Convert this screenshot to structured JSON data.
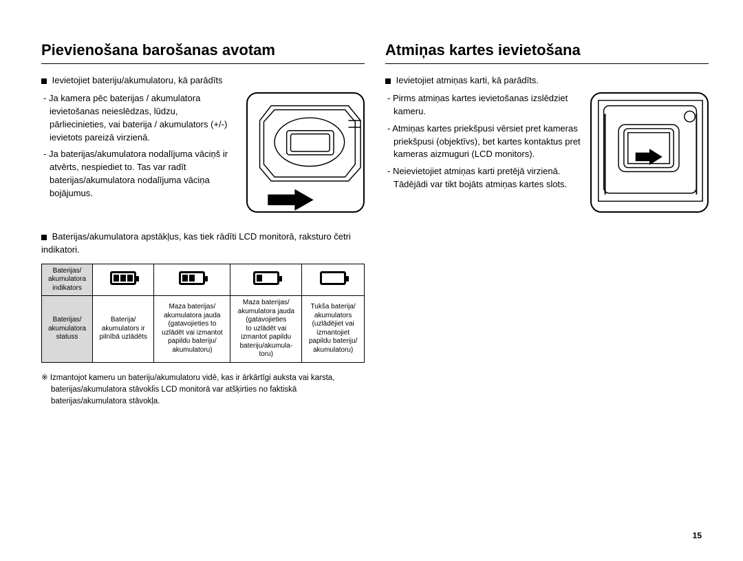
{
  "page_number": "15",
  "left": {
    "heading": "Pievienošana barošanas avotam",
    "intro": "Ievietojiet bateriju/akumulatoru, kā parādīts",
    "bullets": [
      "- Ja kamera pēc baterijas / akumulatora ievietošanas neieslēdzas, lūdzu, pārliecinieties, vai baterija / akumulators (+/-) ievietots pareizā virzienā.",
      "- Ja baterijas/akumulatora nodalījuma vāciņš ir atvērts, nespiediet to. Tas var radīt baterijas/akumulatora nodalījuma vāciņa bojājumus."
    ],
    "section2_intro": "Baterijas/akumulatora apstākļus, kas tiek rādīti LCD monitorā, raksturo četri indikatori.",
    "table": {
      "row1_label": "Baterijas/\nakumulatora\nindikators",
      "row2_label": "Baterijas/\nakumulatora\nstatuss",
      "cells": [
        "Baterija/\nakumulators ir\npilnībā uzlādēts",
        "Maza baterijas/\nakumulatora jauda\n(gatavojieties to\nuzlādēt vai izmantot\npapildu bateriju/\nakumulatoru)",
        "Maza baterijas/\nakumulatora jauda\n(gatavojieties\nto uzlādēt vai\nizmantot papildu\nbateriju/akumula-\ntoru)",
        "Tukša baterija/\nakumulators\n(uzlādējiet vai\nizmantojiet\npapildu bateriju/\nakumulatoru)"
      ],
      "bars": [
        3,
        2,
        1,
        0
      ]
    },
    "footnote": "※ Izmantojot kameru un bateriju/akumulatoru vidē, kas ir ārkārtīgi auksta vai karsta, baterijas/akumulatora stāvoklis LCD monitorā var atšķirties no faktiskā baterijas/akumulatora stāvokļa."
  },
  "right": {
    "heading": "Atmiņas kartes ievietošana",
    "intro": "Ievietojiet atmiņas karti, kā parādīts.",
    "bullets": [
      "- Pirms atmiņas kartes ievietošanas izslēdziet kameru.",
      "- Atmiņas kartes priekšpusi vērsiet pret kameras priekšpusi (objektīvs), bet kartes kontaktus pret kameras aizmuguri (LCD monitors).",
      "- Neievietojiet atmiņas karti pretējā virzienā. Tādējādi var tikt bojāts atmiņas kartes slots."
    ]
  }
}
